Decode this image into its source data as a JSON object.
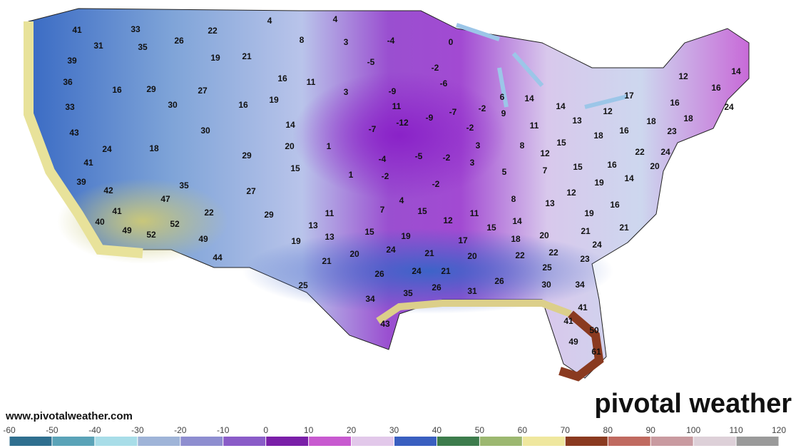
{
  "map": {
    "labels": [
      41,
      33,
      22,
      4,
      4,
      26,
      35,
      31,
      8,
      3,
      -4,
      0,
      19,
      21,
      39,
      -5,
      -2,
      16,
      11,
      36,
      16,
      29,
      27,
      -9,
      3,
      -6,
      6,
      14,
      17,
      12,
      14,
      19,
      16,
      30,
      33,
      11,
      -2,
      -7,
      -9,
      -12,
      9,
      14,
      12,
      16,
      16,
      24,
      18,
      13,
      14,
      30,
      43,
      -7,
      -2,
      11,
      18,
      16,
      18,
      23,
      24,
      18,
      20,
      1,
      3,
      8,
      15,
      29,
      -4,
      -5,
      -2,
      12,
      22,
      24,
      41,
      15,
      3,
      5,
      7,
      15,
      16,
      20,
      1,
      -2,
      39,
      35,
      -2,
      19,
      14,
      42,
      27,
      8,
      13,
      12,
      47,
      4,
      15,
      7,
      11,
      22,
      29,
      41,
      16,
      19,
      11,
      12,
      14,
      52,
      13,
      40,
      49,
      52,
      15,
      19,
      15,
      21,
      21,
      13,
      17,
      18,
      20,
      19,
      49,
      24,
      20,
      24,
      21,
      22,
      22,
      23,
      21,
      20,
      44,
      21,
      25,
      26,
      24,
      25,
      26,
      31,
      26,
      30,
      34,
      35,
      34,
      41,
      43,
      41,
      50,
      49,
      61
    ],
    "source": "www.pivotalweather.com",
    "brand": "pivotal weather"
  },
  "colorbar": {
    "ticks": [
      -60,
      -50,
      -40,
      -30,
      -20,
      -10,
      0,
      10,
      20,
      30,
      40,
      50,
      60,
      70,
      80,
      90,
      100,
      110,
      120
    ],
    "colors": [
      "#2f6f8f",
      "#5aa3b8",
      "#a8dde8",
      "#9fb4d8",
      "#8e8ed0",
      "#8a5cc8",
      "#7a1fa8",
      "#c85ad0",
      "#e2c8ea",
      "#3a5fc0",
      "#3d7c4c",
      "#9cb870",
      "#efe79e",
      "#8a3a20",
      "#c06a60",
      "#c99aa0",
      "#ddd0d8",
      "#9a9a9a",
      "#555555"
    ]
  }
}
